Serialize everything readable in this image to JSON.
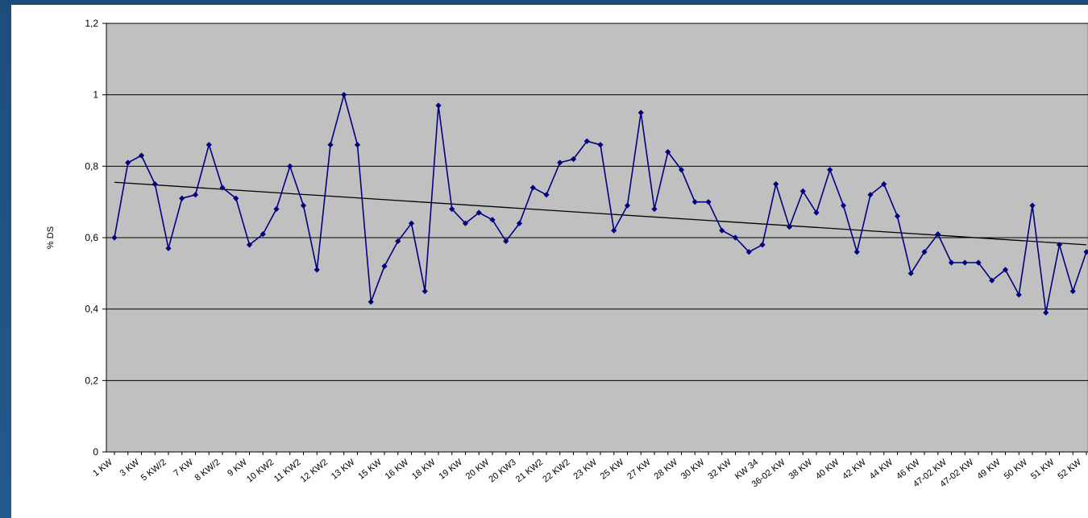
{
  "chart_data": {
    "type": "line",
    "ylabel": "% DS",
    "ylim": [
      0,
      1.2
    ],
    "yticks": [
      {
        "value": 0,
        "label": "0"
      },
      {
        "value": 0.2,
        "label": "0,2"
      },
      {
        "value": 0.4,
        "label": "0,4"
      },
      {
        "value": 0.6,
        "label": "0,6"
      },
      {
        "value": 0.8,
        "label": "0,8"
      },
      {
        "value": 1,
        "label": "1"
      },
      {
        "value": 1.2,
        "label": "1,2"
      }
    ],
    "grid": true,
    "plot_background": "#c0c0c0",
    "series_color": "#000080",
    "trend_color": "#000000",
    "category_labels": [
      {
        "index": 0,
        "label": "1 KW"
      },
      {
        "index": 1,
        "label": "3 KW"
      },
      {
        "index": 2,
        "label": "5 KW/2"
      },
      {
        "index": 3,
        "label": "7 KW"
      },
      {
        "index": 4,
        "label": "8 KW/2"
      },
      {
        "index": 5,
        "label": "9 KW"
      },
      {
        "index": 6,
        "label": "10 KW2"
      },
      {
        "index": 7,
        "label": "11 KW2"
      },
      {
        "index": 8,
        "label": "12 KW2"
      },
      {
        "index": 9,
        "label": "13 KW"
      },
      {
        "index": 10,
        "label": "15 KW"
      },
      {
        "index": 11,
        "label": "16 KW"
      },
      {
        "index": 12,
        "label": "18 KW"
      },
      {
        "index": 13,
        "label": "19 KW"
      },
      {
        "index": 14,
        "label": "20 KW"
      },
      {
        "index": 15,
        "label": "20 KW3"
      },
      {
        "index": 16,
        "label": "21 KW2"
      },
      {
        "index": 17,
        "label": "22 KW2"
      },
      {
        "index": 18,
        "label": "23 KW"
      },
      {
        "index": 19,
        "label": "25 KW"
      },
      {
        "index": 20,
        "label": "27 KW"
      },
      {
        "index": 21,
        "label": "28 KW"
      },
      {
        "index": 22,
        "label": "30 KW"
      },
      {
        "index": 23,
        "label": "32 KW"
      },
      {
        "index": 24,
        "label": "KW 34"
      },
      {
        "index": 25,
        "label": "36-02 KW"
      },
      {
        "index": 26,
        "label": "38 KW"
      },
      {
        "index": 27,
        "label": "40 KW"
      },
      {
        "index": 28,
        "label": "42 KW"
      },
      {
        "index": 29,
        "label": "44 KW"
      },
      {
        "index": 30,
        "label": "46 KW"
      },
      {
        "index": 31,
        "label": "47-02 KW"
      },
      {
        "index": 32,
        "label": "47-02 KW"
      },
      {
        "index": 33,
        "label": "49 KW"
      },
      {
        "index": 34,
        "label": "50 KW"
      },
      {
        "index": 35,
        "label": "51 KW"
      },
      {
        "index": 36,
        "label": "52 KW"
      }
    ],
    "series": [
      {
        "values": [
          0.6,
          0.81,
          0.83,
          0.75,
          0.57,
          0.71,
          0.72,
          0.86,
          0.74,
          0.71,
          0.58,
          0.61,
          0.68,
          0.8,
          0.69,
          0.51,
          0.86,
          1.0,
          0.86,
          0.42,
          0.52,
          0.59,
          0.64,
          0.45,
          0.97,
          0.68,
          0.64,
          0.67,
          0.65,
          0.59,
          0.64,
          0.74,
          0.72,
          0.81,
          0.82,
          0.87,
          0.86,
          0.62,
          0.69,
          0.95,
          0.68,
          0.84,
          0.79,
          0.7,
          0.7,
          0.62,
          0.6,
          0.56,
          0.58,
          0.75,
          0.63,
          0.73,
          0.67,
          0.79,
          0.69,
          0.56,
          0.72,
          0.75,
          0.66,
          0.5,
          0.56,
          0.61,
          0.53,
          0.53,
          0.53,
          0.48,
          0.51,
          0.44,
          0.69,
          0.39,
          0.58,
          0.45,
          0.56
        ]
      }
    ],
    "trendline": {
      "start": 0.755,
      "end": 0.58
    }
  }
}
